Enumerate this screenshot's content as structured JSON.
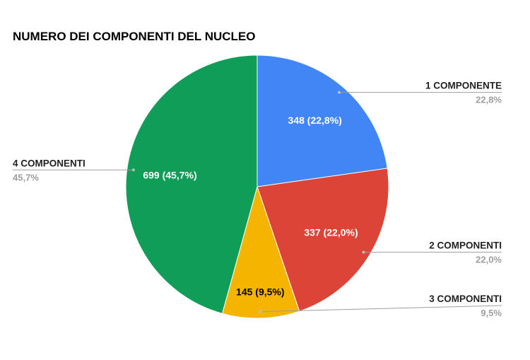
{
  "chart_data": {
    "type": "pie",
    "title": "NUMERO DEI COMPONENTI DEL NUCLEO",
    "categories": [
      "1 COMPONENTE",
      "2 COMPONENTI",
      "3 COMPONENTI",
      "4 COMPONENTI"
    ],
    "values": [
      348,
      337,
      145,
      699
    ],
    "slice_labels": [
      "348 (22,8%)",
      "337 (22,0%)",
      "145 (9,5%)",
      "699 (45,7%)"
    ],
    "percent_labels": [
      "22,8%",
      "22,0%",
      "9,5%",
      "45,7%"
    ],
    "colors": [
      "#4285F4",
      "#DB4437",
      "#F4B400",
      "#0F9D58"
    ],
    "slice_label_colors": [
      "#FFFFFF",
      "#FFFFFF",
      "#000000",
      "#FFFFFF"
    ]
  }
}
